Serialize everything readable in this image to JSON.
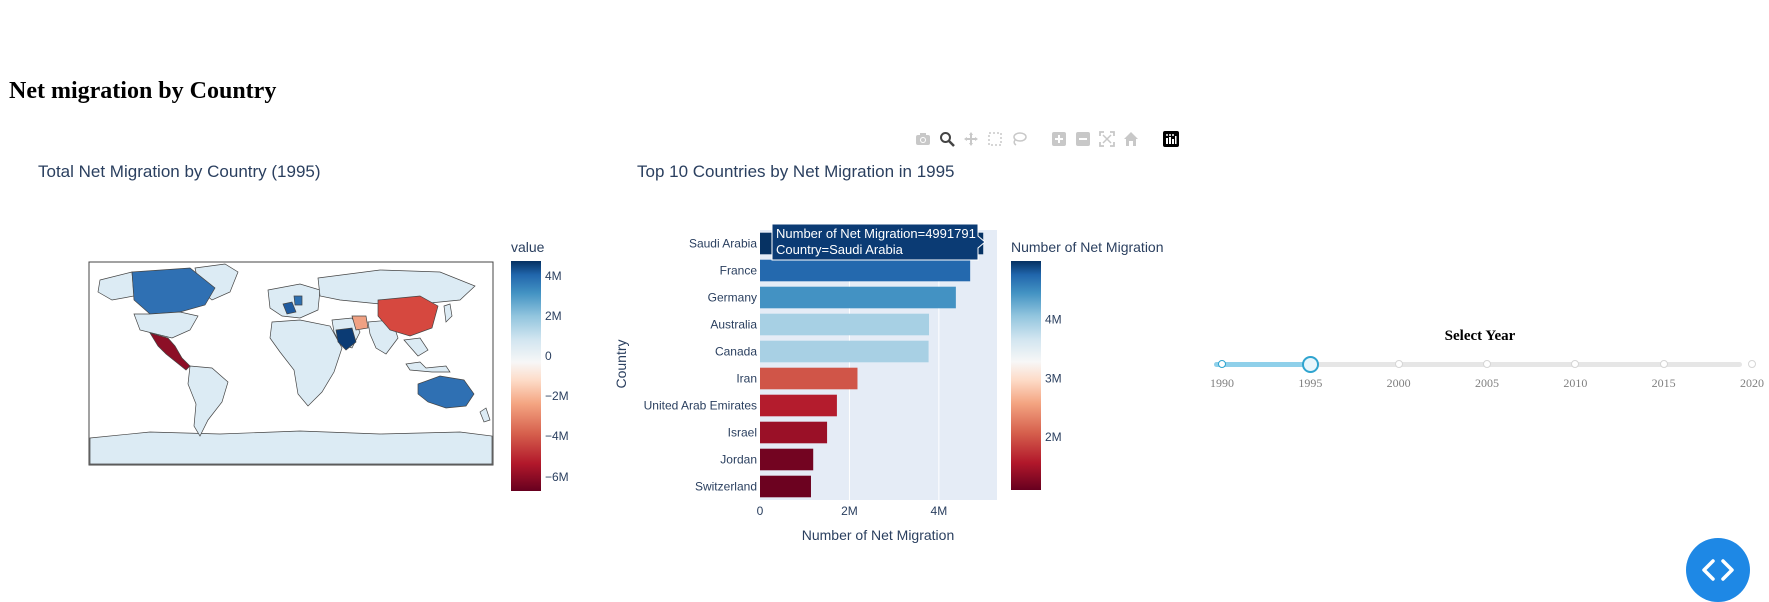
{
  "page": {
    "title": "Net migration by Country"
  },
  "modebar": {
    "icons": [
      "camera-icon",
      "zoom-icon",
      "pan-icon",
      "box-select-icon",
      "lasso-icon",
      "zoom-in-icon",
      "zoom-out-icon",
      "autoscale-icon",
      "reset-axes-icon",
      "plotly-logo-icon"
    ]
  },
  "map": {
    "title": "Total Net Migration by Country (1995)",
    "colorbar_title": "value",
    "colorbar_ticks": [
      "4M",
      "2M",
      "0",
      "−2M",
      "−4M",
      "−6M"
    ]
  },
  "bar": {
    "title": "Top 10 Countries by Net Migration in 1995",
    "xlabel": "Number of Net Migration",
    "ylabel": "Country",
    "colorbar_title": "Number of Net Migration",
    "colorbar_ticks": [
      "4M",
      "3M",
      "2M"
    ],
    "tooltip": {
      "line1": "Number of Net Migration=4991791",
      "line2": "Country=Saudi Arabia"
    }
  },
  "chart_data": [
    {
      "type": "choropleth",
      "title": "Total Net Migration by Country (1995)",
      "colorbar_title": "value",
      "colorbar_ticks": [
        4000000,
        2000000,
        0,
        -2000000,
        -4000000,
        -6000000
      ],
      "colorscale": "RdBu",
      "highlighted_regions": [
        {
          "region": "Saudi Arabia",
          "value": 4991791
        },
        {
          "region": "France",
          "value": 4700000
        },
        {
          "region": "Germany",
          "value": 4400000
        },
        {
          "region": "Canada",
          "value": 3800000
        },
        {
          "region": "Australia",
          "value": 3800000
        },
        {
          "region": "China",
          "value": -3500000
        },
        {
          "region": "Mexico",
          "value": -6000000
        }
      ]
    },
    {
      "type": "bar",
      "orientation": "horizontal",
      "title": "Top 10 Countries by Net Migration in 1995",
      "xlabel": "Number of Net Migration",
      "ylabel": "Country",
      "categories": [
        "Saudi Arabia",
        "France",
        "Germany",
        "Australia",
        "Canada",
        "Iran",
        "United Arab Emirates",
        "Israel",
        "Jordan",
        "Switzerland"
      ],
      "values": [
        4991791,
        4700000,
        4380000,
        3780000,
        3770000,
        2180000,
        1720000,
        1500000,
        1190000,
        1140000
      ],
      "xlim": [
        0,
        5300000
      ],
      "xticks": [
        0,
        2000000,
        4000000
      ],
      "xtick_labels": [
        "0",
        "2M",
        "4M"
      ],
      "colorbar_ticks": [
        4000000,
        3000000,
        2000000
      ],
      "color_range": [
        1100000,
        5000000
      ],
      "colorscale": "RdBu"
    }
  ],
  "slider": {
    "title": "Select Year",
    "years": [
      "1990",
      "1995",
      "2000",
      "2005",
      "2010",
      "2015",
      "2020"
    ],
    "selected_index": 1
  }
}
